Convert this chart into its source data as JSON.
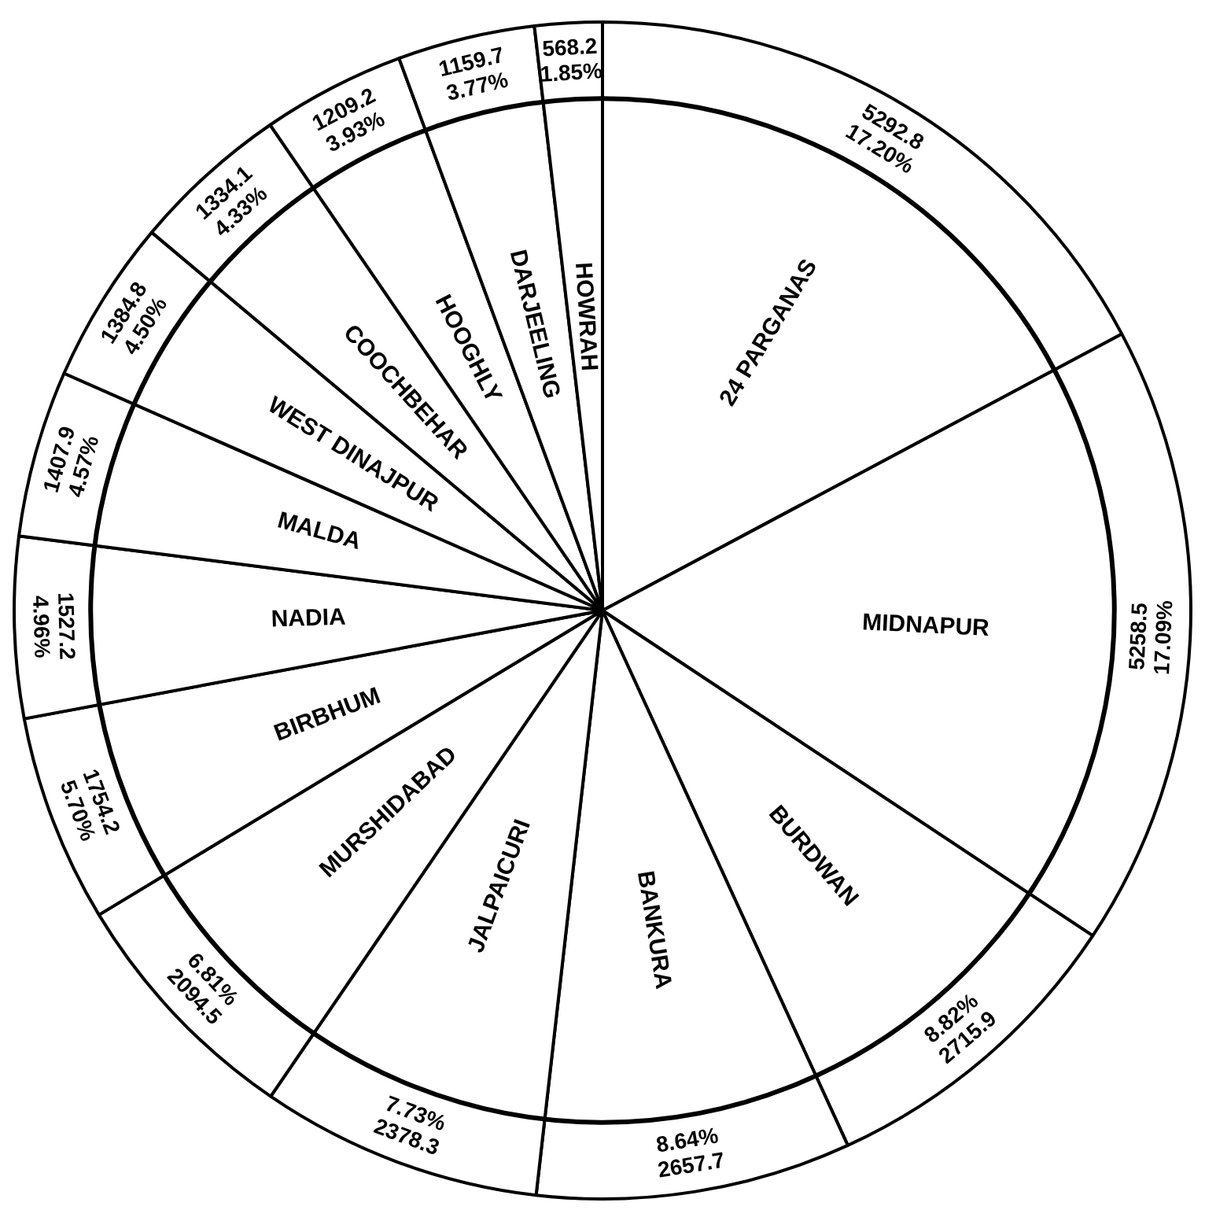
{
  "chart_data": {
    "type": "pie",
    "categories": [
      "24 PARGANAS",
      "MIDNAPUR",
      "BURDWAN",
      "BANKURA",
      "JALPAICURI",
      "MURSHIDABAD",
      "BIRBHUM",
      "NADIA",
      "MALDA",
      "WEST DINAJPUR",
      "COOCHBEHAR",
      "HOOGHLY",
      "DARJEELING",
      "HOWRAH"
    ],
    "values": [
      5292.8,
      5258.5,
      2715.9,
      2657.7,
      2378.3,
      2094.5,
      1754.2,
      1527.2,
      1407.9,
      1384.8,
      1334.1,
      1209.2,
      1159.7,
      568.2
    ],
    "value_labels": [
      "5292.8\n17.20%",
      "5258.5\n17.09%",
      "8.82%\n2715.9",
      "8.64%\n2657.7",
      "7.73%\n2378.3",
      "6.81%\n2094.5",
      "1754.2\n5.70%",
      "1527.2\n4.96%",
      "1407.9\n4.57%",
      "1384.8\n4.50%",
      "1334.1\n4.33%",
      "1209.2\n3.93%",
      "1159.7\n3.77%",
      "568.2\n1.85%"
    ],
    "colors": [
      "#ffffff",
      "#ffffff",
      "#ffffff",
      "#ffffff",
      "#ffffff",
      "#ffffff",
      "#ffffff",
      "#ffffff",
      "#ffffff",
      "#ffffff",
      "#ffffff",
      "#ffffff",
      "#ffffff",
      "#ffffff"
    ],
    "legend": false
  }
}
